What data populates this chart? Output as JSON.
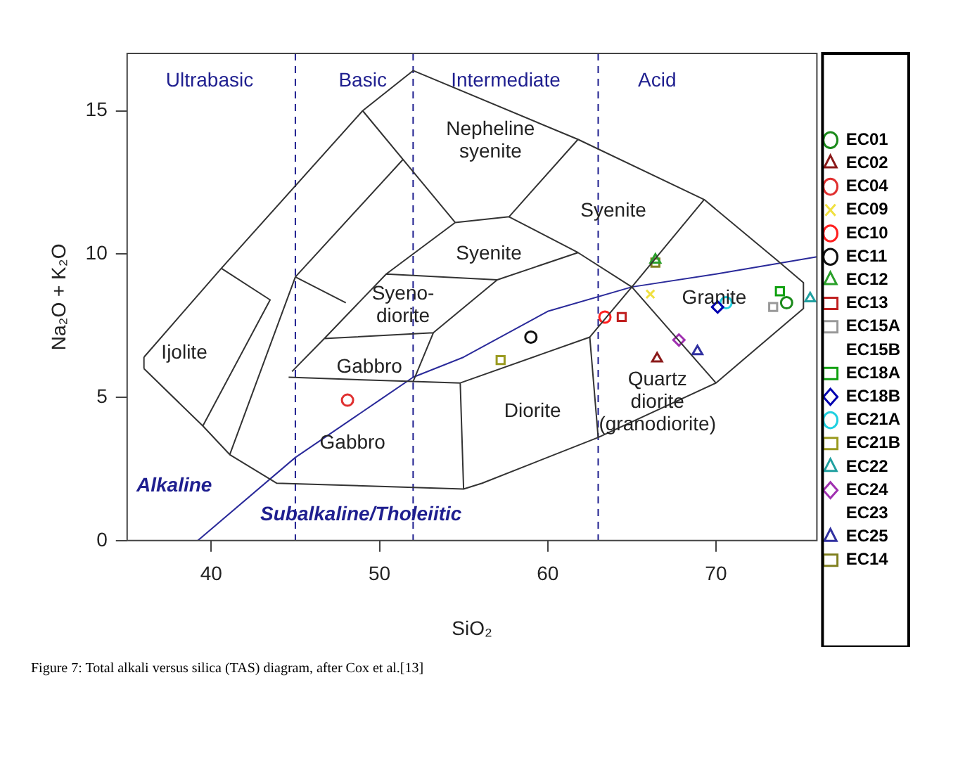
{
  "chart_data": {
    "type": "scatter",
    "xlabel": "SiO₂",
    "ylabel": "Na₂O + K₂O",
    "xlim": [
      35,
      76
    ],
    "ylim": [
      0,
      17
    ],
    "xticks": [
      40,
      50,
      60,
      70
    ],
    "yticks": [
      0,
      5,
      10,
      15
    ],
    "grid": false,
    "legend": "right",
    "series": [
      {
        "type": "line",
        "color": "#333333",
        "x": [
          36.0,
          40.6,
          49.0,
          52.0,
          61.8,
          69.3,
          73.6,
          75.2,
          null,
          75.2,
          75.2,
          null,
          36.0,
          39.5,
          41.1,
          43.9,
          55.0,
          56.1,
          63.0,
          70.0,
          75.2,
          null,
          36.0,
          36.0,
          null,
          40.6,
          43.5,
          39.5,
          null,
          51.4,
          45.0,
          41.1,
          null,
          49.0,
          54.5,
          57.7,
          61.8,
          null,
          57.7,
          61.8,
          65.0,
          null,
          69.3,
          65.0,
          62.5,
          null,
          65.0,
          70.0,
          null,
          44.8,
          46.8,
          50.4,
          54.5,
          null,
          45.0,
          48.0,
          null,
          50.4,
          57.0,
          61.8,
          null,
          57.0,
          53.2,
          52.0,
          null,
          46.7,
          53.2,
          null,
          44.6,
          52.0,
          54.8,
          62.5,
          null,
          54.8,
          55.0,
          null,
          62.5,
          63.0
        ],
        "values": [
          6.4,
          9.5,
          15.0,
          16.4,
          14.0,
          11.9,
          9.8,
          9.0,
          null,
          9.0,
          8.1,
          null,
          6.0,
          4.0,
          3.0,
          2.0,
          1.8,
          2.0,
          3.6,
          5.5,
          8.1,
          null,
          6.0,
          6.4,
          null,
          9.5,
          8.4,
          4.0,
          null,
          13.3,
          9.2,
          3.0,
          null,
          15.0,
          11.1,
          11.3,
          14.0,
          null,
          11.3,
          10.05,
          8.85,
          null,
          11.9,
          8.85,
          7.1,
          null,
          8.85,
          5.5,
          null,
          5.9,
          7.1,
          9.3,
          11.1,
          null,
          9.2,
          8.3,
          null,
          9.3,
          9.1,
          10.05,
          null,
          9.1,
          7.25,
          5.55,
          null,
          7.05,
          7.25,
          null,
          5.7,
          5.55,
          5.5,
          7.1,
          null,
          5.5,
          1.8,
          null,
          7.1,
          3.6
        ]
      },
      {
        "type": "line",
        "color": "#2a2a9a",
        "x": [
          39.2,
          45,
          50,
          52,
          55,
          60,
          65,
          70,
          76
        ],
        "values": [
          0,
          2.9,
          4.9,
          5.7,
          6.4,
          8.0,
          8.85,
          9.3,
          9.9
        ]
      },
      {
        "name": "EC01",
        "color": "#1a8a1a",
        "marker": "circle",
        "x": [
          74.2
        ],
        "values": [
          8.3
        ]
      },
      {
        "name": "EC02",
        "color": "#8b1a1a",
        "marker": "triangle",
        "x": [
          66.5
        ],
        "values": [
          6.35
        ]
      },
      {
        "name": "EC04",
        "color": "#e03030",
        "marker": "circle",
        "x": [
          48.1
        ],
        "values": [
          4.9
        ]
      },
      {
        "name": "EC09",
        "color": "#f0e040",
        "marker": "cross",
        "x": [
          66.1
        ],
        "values": [
          8.6
        ]
      },
      {
        "name": "EC10",
        "color": "#ff2020",
        "marker": "circle",
        "x": [
          63.4
        ],
        "values": [
          7.8
        ]
      },
      {
        "name": "EC11",
        "color": "#111111",
        "marker": "circle",
        "x": [
          59.0
        ],
        "values": [
          7.1
        ]
      },
      {
        "name": "EC12",
        "color": "#2aa02a",
        "marker": "triangle",
        "x": [
          66.4
        ],
        "values": [
          9.8
        ]
      },
      {
        "name": "EC13",
        "color": "#c02020",
        "marker": "square",
        "x": [
          64.4
        ],
        "values": [
          7.8
        ]
      },
      {
        "name": "EC15A",
        "color": "#999999",
        "marker": "square",
        "x": [
          73.4
        ],
        "values": [
          8.15
        ]
      },
      {
        "name": "EC15B"
      },
      {
        "name": "EC18A",
        "color": "#10a010",
        "marker": "square",
        "x": [
          73.8
        ],
        "values": [
          8.7
        ]
      },
      {
        "name": "EC18B",
        "color": "#0000b0",
        "marker": "diamond",
        "x": [
          70.1
        ],
        "values": [
          8.15
        ]
      },
      {
        "name": "EC21A",
        "color": "#20d0e0",
        "marker": "circle",
        "x": [
          70.6
        ],
        "values": [
          8.3
        ]
      },
      {
        "name": "EC21B",
        "color": "#9a9a20",
        "marker": "square",
        "x": [
          57.2
        ],
        "values": [
          6.3
        ]
      },
      {
        "name": "EC22",
        "color": "#20a0a0",
        "marker": "triangle",
        "x": [
          75.6
        ],
        "values": [
          8.45
        ]
      },
      {
        "name": "EC24",
        "color": "#a030b0",
        "marker": "diamond",
        "x": [
          67.8
        ],
        "values": [
          7.0
        ]
      },
      {
        "name": "EC23"
      },
      {
        "name": "EC25",
        "color": "#3030a0",
        "marker": "triangle",
        "x": [
          68.9
        ],
        "values": [
          6.6
        ]
      },
      {
        "name": "EC14",
        "color": "#808020",
        "marker": "square",
        "x": [
          66.4
        ],
        "values": [
          9.7
        ]
      }
    ],
    "ref_lines": [
      {
        "axis": "x",
        "value": 45,
        "color": "#1f1f8f",
        "line_style": "dashed"
      },
      {
        "axis": "x",
        "value": 52,
        "color": "#1f1f8f",
        "line_style": "dashed"
      },
      {
        "axis": "x",
        "value": 63,
        "color": "#1f1f8f",
        "line_style": "dashed"
      }
    ],
    "annotations": [
      "Ultrabasic",
      "Basic",
      "Intermediate",
      "Acid",
      "Nepheline\nsyenite",
      "Syenite",
      "Syenite",
      "Syeno-\ndiorite",
      "Gabbro",
      "Gabbro",
      "Ijolite",
      "Diorite",
      "Quartz\ndiorite\n(granodiorite)",
      "Granite",
      "Alkaline",
      "Subalkaline/Tholeiitic",
      "Figure 7: Total  alkali versus silica (TAS) diagram, after Cox et al.[13]"
    ]
  }
}
